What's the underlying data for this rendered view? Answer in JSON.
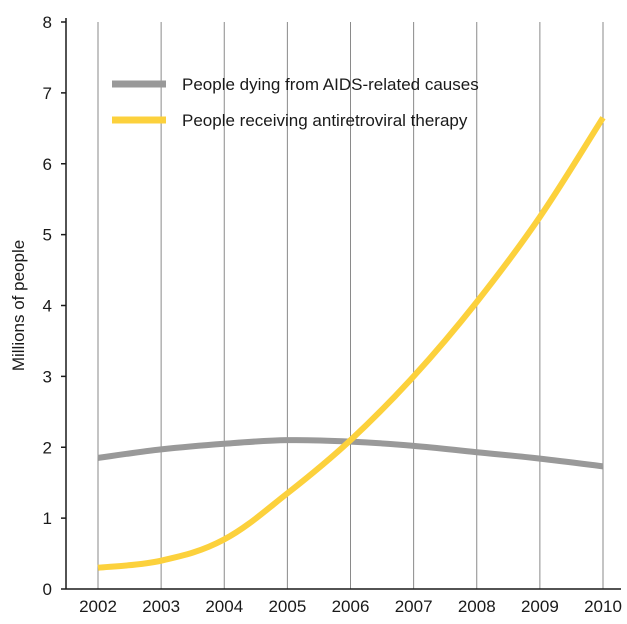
{
  "chart_data": {
    "type": "line",
    "x": [
      "2002",
      "2003",
      "2004",
      "2005",
      "2006",
      "2007",
      "2008",
      "2009",
      "2010"
    ],
    "series": [
      {
        "name": "People dying from AIDS-related causes",
        "color": "#999999",
        "values": [
          1.85,
          1.97,
          2.05,
          2.1,
          2.08,
          2.02,
          1.93,
          1.84,
          1.73
        ]
      },
      {
        "name": "People receiving antiretroviral therapy",
        "color": "#fcd13c",
        "values": [
          0.3,
          0.4,
          0.7,
          1.35,
          2.1,
          3.0,
          4.05,
          5.25,
          6.65
        ]
      }
    ],
    "title": "",
    "xlabel": "",
    "ylabel": "Millions of people",
    "ylim": [
      0,
      8
    ],
    "yticks": [
      0,
      1,
      2,
      3,
      4,
      5,
      6,
      7,
      8
    ],
    "grid": "vertical",
    "legend_position": "top-left"
  }
}
